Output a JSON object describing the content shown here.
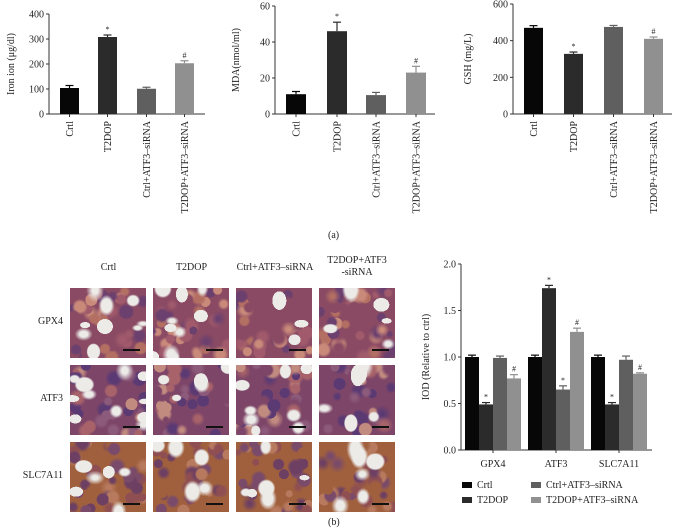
{
  "panel_labels": {
    "a": "(a)",
    "b": "(b)"
  },
  "colors": {
    "Crtl": "#070707",
    "T2DOP": "#2b2b2b",
    "Ctrl+ATF3-siRNA": "#5f5f5f",
    "T2DOP+ATF3-siRNA": "#909090",
    "axis": "#333333"
  },
  "histology": {
    "column_headers": [
      "Crtl",
      "T2DOP",
      "Ctrl+ATF3–siRNA",
      "T2DOP+ATF3\n-siRNA"
    ],
    "column_headers_line1": [
      "Crtl",
      "T2DOP",
      "Ctrl+ATF3–siRNA",
      "T2DOP+ATF3"
    ],
    "column_headers_line2": [
      "",
      "",
      "",
      "-siRNA"
    ],
    "row_headers": [
      "GPX4",
      "ATF3",
      "SLC7A11"
    ]
  },
  "chart_data": [
    {
      "type": "bar",
      "title": "",
      "xlabel": "",
      "ylabel": "Iron ion (μg/dl)",
      "categories": [
        "Crtl",
        "T2DOP",
        "Ctrl+ATF3–siRNA",
        "T2DOP+ATF3–siRNA"
      ],
      "values": [
        104,
        308,
        101,
        203
      ],
      "errors": [
        10,
        8,
        6,
        10
      ],
      "annotations": [
        "",
        "*",
        "",
        "#"
      ],
      "ylim": [
        0,
        400
      ],
      "yticks": [
        0,
        100,
        200,
        300,
        400
      ],
      "grid": false
    },
    {
      "type": "bar",
      "title": "",
      "xlabel": "",
      "ylabel": "MDA(nmol/ml)",
      "categories": [
        "Crtl",
        "T2DOP",
        "Ctrl+ATF3–siRNA",
        "T2DOP+ATF3–siRNA"
      ],
      "values": [
        11,
        46,
        10.5,
        23
      ],
      "errors": [
        1.5,
        5,
        1.5,
        3.5
      ],
      "annotations": [
        "",
        "*",
        "",
        "#"
      ],
      "ylim": [
        0,
        60
      ],
      "yticks": [
        0,
        20,
        40,
        60
      ],
      "grid": false
    },
    {
      "type": "bar",
      "title": "",
      "xlabel": "",
      "ylabel": "GSH (mg/L)",
      "categories": [
        "Crtl",
        "T2DOP",
        "Ctrl+ATF3–siRNA",
        "T2DOP+ATF3–siRNA"
      ],
      "values": [
        470,
        328,
        475,
        410
      ],
      "errors": [
        12,
        10,
        8,
        10
      ],
      "annotations": [
        "",
        "*",
        "",
        "#"
      ],
      "ylim": [
        0,
        600
      ],
      "yticks": [
        0,
        200,
        400,
        600
      ],
      "grid": false
    },
    {
      "type": "bar",
      "title": "",
      "xlabel": "",
      "ylabel": "IOD (Relative to ctrl)",
      "categories": [
        "GPX4",
        "ATF3",
        "SLC7A11"
      ],
      "series": [
        {
          "name": "Crtl",
          "values": [
            1.0,
            1.0,
            1.0
          ],
          "errors": [
            0.02,
            0.02,
            0.02
          ],
          "annotations": [
            "",
            "",
            ""
          ]
        },
        {
          "name": "T2DOP",
          "values": [
            0.49,
            1.74,
            0.49
          ],
          "errors": [
            0.02,
            0.03,
            0.02
          ],
          "annotations": [
            "*",
            "*",
            "*"
          ]
        },
        {
          "name": "Ctrl+ATF3–siRNA",
          "values": [
            0.99,
            0.65,
            0.97
          ],
          "errors": [
            0.02,
            0.04,
            0.04
          ],
          "annotations": [
            "",
            "*",
            ""
          ]
        },
        {
          "name": "T2DOP+ATF3–siRNA",
          "values": [
            0.77,
            1.27,
            0.82
          ],
          "errors": [
            0.04,
            0.04,
            0.01
          ],
          "annotations": [
            "#",
            "#",
            "#"
          ]
        }
      ],
      "ylim": [
        0,
        2.0
      ],
      "yticks": [
        "0.0",
        "0.5",
        "1.0",
        "1.5",
        "2.0"
      ],
      "legend": {
        "position": "bottom",
        "entries": [
          "Crtl",
          "T2DOP",
          "Ctrl+ATF3–siRNA",
          "T2DOP+ATF3–siRNA"
        ]
      },
      "grid": false
    }
  ]
}
